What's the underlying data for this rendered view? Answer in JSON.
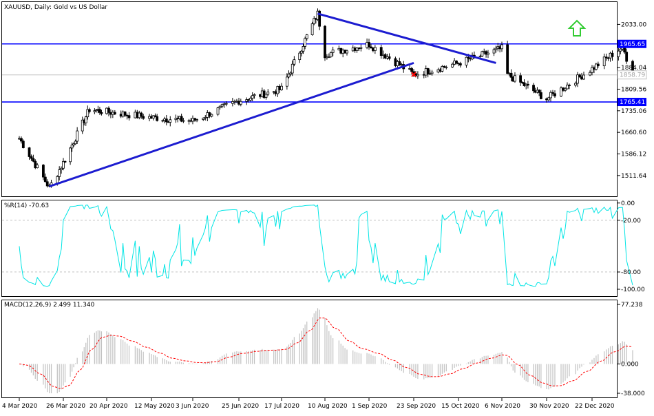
{
  "chart_data": [
    {
      "type": "candlestick",
      "title": "XAUUSD, Daily:  Gold vs US Dollar",
      "y_ticks": [
        "2033.00",
        "1884.04",
        "1809.56",
        "1735.06",
        "1660.60",
        "1586.12",
        "1511.64"
      ],
      "ylim": [
        1440,
        2110
      ],
      "x_ticks": [
        "4 Mar 2020",
        "26 Mar 2020",
        "20 Apr 2020",
        "12 May 2020",
        "3 Jun 2020",
        "25 Jun 2020",
        "17 Jul 2020",
        "10 Aug 2020",
        "1 Sep 2020",
        "23 Sep 2020",
        "15 Oct 2020",
        "6 Nov 2020",
        "30 Nov 2020",
        "22 Dec 2020"
      ],
      "key_points": [
        {
          "date": "4 Mar 2020",
          "price": 1640
        },
        {
          "date": "19 Mar 2020",
          "price": 1470
        },
        {
          "date": "10 Apr 2020",
          "price": 1740
        },
        {
          "date": "12 May 2020",
          "price": 1712
        },
        {
          "date": "3 Jun 2020",
          "price": 1700
        },
        {
          "date": "25 Jun 2020",
          "price": 1770
        },
        {
          "date": "17 Jul 2020",
          "price": 1810
        },
        {
          "date": "6 Aug 2020",
          "price": 2070
        },
        {
          "date": "10 Aug 2020",
          "price": 1930
        },
        {
          "date": "1 Sep 2020",
          "price": 1965
        },
        {
          "date": "23 Sep 2020",
          "price": 1860
        },
        {
          "date": "15 Oct 2020",
          "price": 1900
        },
        {
          "date": "6 Nov 2020",
          "price": 1950
        },
        {
          "date": "9 Nov 2020",
          "price": 1860
        },
        {
          "date": "30 Nov 2020",
          "price": 1776
        },
        {
          "date": "22 Dec 2020",
          "price": 1880
        },
        {
          "date": "6 Jan 2021",
          "price": 1955
        },
        {
          "date": "11 Jan 2021",
          "price": 1858
        }
      ],
      "levels": [
        {
          "label": "1965.65",
          "value": 1965.65,
          "color": "#0000ff"
        },
        {
          "label": "1765.41",
          "value": 1765.41,
          "color": "#0000ff"
        },
        {
          "label": "1858.79",
          "value": 1858.79,
          "color": "#c0c0c0"
        }
      ],
      "trendlines": [
        {
          "from": {
            "date": "19 Mar 2020",
            "price": 1474
          },
          "to": {
            "date": "23 Sep 2020",
            "price": 1900
          }
        },
        {
          "from": {
            "date": "6 Aug 2020",
            "price": 2070
          },
          "to": {
            "date": "3 Nov 2020",
            "price": 1900
          }
        }
      ],
      "arrow": {
        "direction": "up",
        "color": "#33cc33"
      },
      "marker": {
        "date": "23 Sep 2020",
        "price": 1860,
        "color": "#ff0000"
      },
      "colors": {
        "candles": "#000000",
        "level_lines": "#0000ff",
        "trendlines": "#1c1cd0"
      }
    },
    {
      "type": "line",
      "title": "%R(14) -70.63",
      "y_ticks": [
        "0.00",
        "-20.00",
        "-80.00",
        "-100.00"
      ],
      "ylim": [
        -108,
        3
      ],
      "levels": [
        -20,
        -80
      ],
      "series": [
        {
          "color": "#00e5e5"
        }
      ]
    },
    {
      "type": "bar",
      "title": "MACD(12,26,9) 2.499 11.340",
      "y_ticks": [
        "77.238",
        "0.000",
        "-38.000"
      ],
      "ylim": [
        -38,
        77.238
      ],
      "series": [
        {
          "color": "#c0c0c0"
        },
        {
          "color": "#ff0000",
          "style": "dashed"
        }
      ]
    }
  ]
}
